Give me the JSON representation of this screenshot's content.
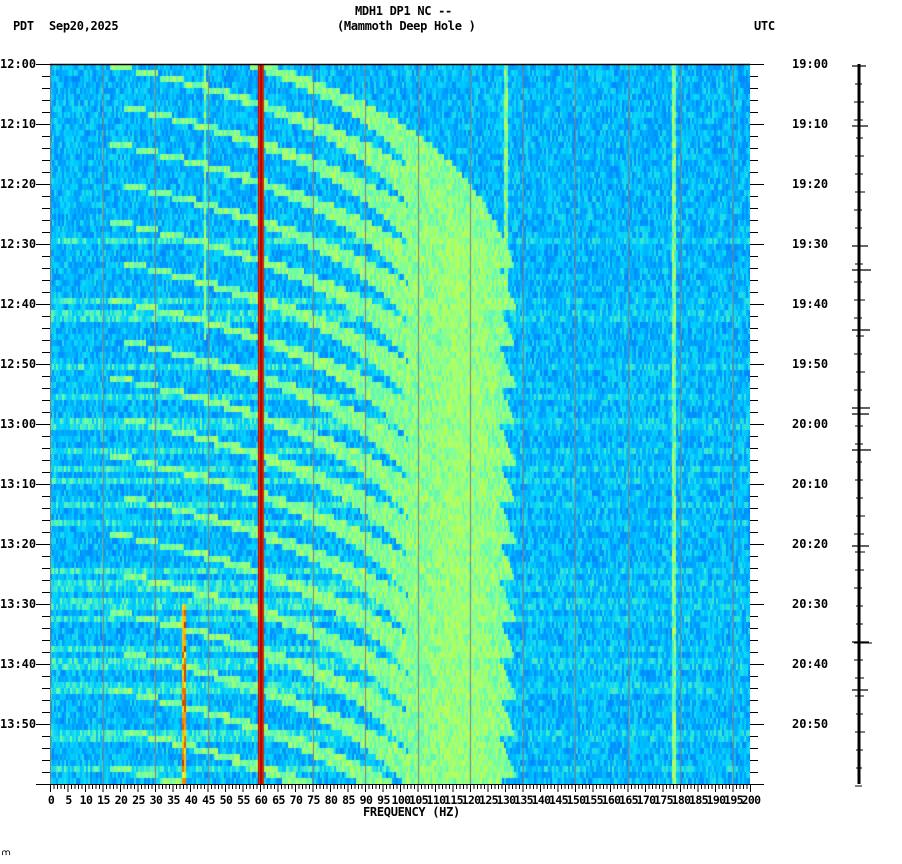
{
  "header": {
    "title_line1": "MDH1 DP1 NC --",
    "title_line2": "(Mammoth Deep Hole )",
    "left_timezone": "PDT",
    "date": "Sep20,2025",
    "right_timezone": "UTC"
  },
  "footer": {
    "corner_mark": "⩋"
  },
  "colors": {
    "background": "#0a70e8",
    "low": "#0050f0",
    "mid": "#00c8ff",
    "high": "#c8ff50",
    "peak": "#ff3000",
    "line60": "#b40000",
    "grid": "#808080",
    "axis": "#000000"
  },
  "chart_data": {
    "type": "heatmap",
    "subtype": "spectrogram",
    "title": "MDH1 DP1 NC -- (Mammoth Deep Hole )",
    "xlabel": "FREQUENCY (HZ)",
    "ylabel_left": "PDT",
    "ylabel_right": "UTC",
    "date": "Sep20,2025",
    "xlim": [
      0,
      200
    ],
    "x_ticks": [
      0,
      5,
      10,
      15,
      20,
      25,
      30,
      35,
      40,
      45,
      50,
      55,
      60,
      65,
      70,
      75,
      80,
      85,
      90,
      95,
      100,
      105,
      110,
      115,
      120,
      125,
      130,
      135,
      140,
      145,
      150,
      155,
      160,
      165,
      170,
      175,
      180,
      185,
      190,
      195,
      200
    ],
    "x_minor_tick_step": 1,
    "y_ticks_left": [
      "12:00",
      "12:10",
      "12:20",
      "12:30",
      "12:40",
      "12:50",
      "13:00",
      "13:10",
      "13:20",
      "13:30",
      "13:40",
      "13:50"
    ],
    "y_ticks_right": [
      "19:00",
      "19:10",
      "19:20",
      "19:30",
      "19:40",
      "19:50",
      "20:00",
      "20:10",
      "20:20",
      "20:30",
      "20:40",
      "20:50"
    ],
    "time_range_minutes": 120,
    "y_minor_tick_step_minutes": 2,
    "grid_vertical_every_hz": 15,
    "persistent_lines_hz": [
      {
        "freq": 60,
        "level": "peak",
        "note": "strong 60 Hz power line"
      },
      {
        "freq": 5.5,
        "level": "mid"
      },
      {
        "freq": 44,
        "level": "high",
        "span_min": [
          0,
          45
        ]
      },
      {
        "freq": 38,
        "level": "peak",
        "span_min": [
          90,
          120
        ]
      },
      {
        "freq": 178,
        "level": "high"
      },
      {
        "freq": 120,
        "level": "mid"
      },
      {
        "freq": 130,
        "level": "high",
        "span_min": [
          0,
          40
        ]
      }
    ],
    "sweep_features": {
      "description": "repeating upward-curving frequency sweeps (~every 6-7 min) from ~20 Hz to ~130 Hz",
      "count": 18,
      "period_minutes": 6.5
    }
  },
  "trace": {
    "label": "seismogram trace",
    "spike_minutes": [
      0,
      10,
      30,
      34,
      44,
      57,
      58,
      64,
      80,
      96,
      104
    ]
  }
}
